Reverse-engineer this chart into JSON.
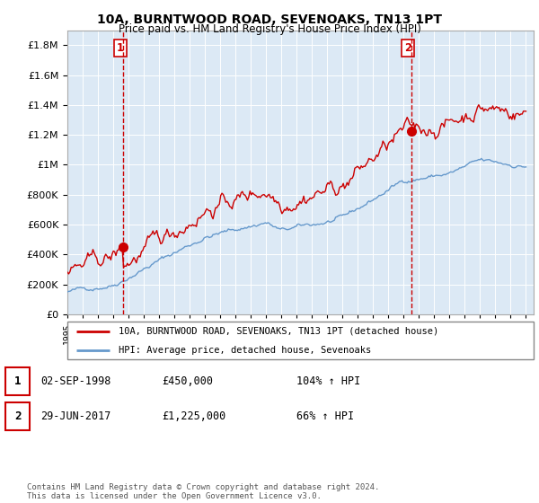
{
  "title1": "10A, BURNTWOOD ROAD, SEVENOAKS, TN13 1PT",
  "title2": "Price paid vs. HM Land Registry's House Price Index (HPI)",
  "ytick_values": [
    0,
    200000,
    400000,
    600000,
    800000,
    1000000,
    1200000,
    1400000,
    1600000,
    1800000
  ],
  "ylim": [
    0,
    1900000
  ],
  "x_start_year": 1995,
  "x_end_year": 2025,
  "sale1_year": 1998.67,
  "sale1_price": 450000,
  "sale2_year": 2017.5,
  "sale2_price": 1225000,
  "red_color": "#cc0000",
  "blue_color": "#6699cc",
  "plot_bg_color": "#dce9f5",
  "legend_label_red": "10A, BURNTWOOD ROAD, SEVENOAKS, TN13 1PT (detached house)",
  "legend_label_blue": "HPI: Average price, detached house, Sevenoaks",
  "table_row1": [
    "1",
    "02-SEP-1998",
    "£450,000",
    "104% ↑ HPI"
  ],
  "table_row2": [
    "2",
    "29-JUN-2017",
    "£1,225,000",
    "66% ↑ HPI"
  ],
  "footer": "Contains HM Land Registry data © Crown copyright and database right 2024.\nThis data is licensed under the Open Government Licence v3.0.",
  "bg_color": "#ffffff",
  "grid_color": "#aaaacc"
}
